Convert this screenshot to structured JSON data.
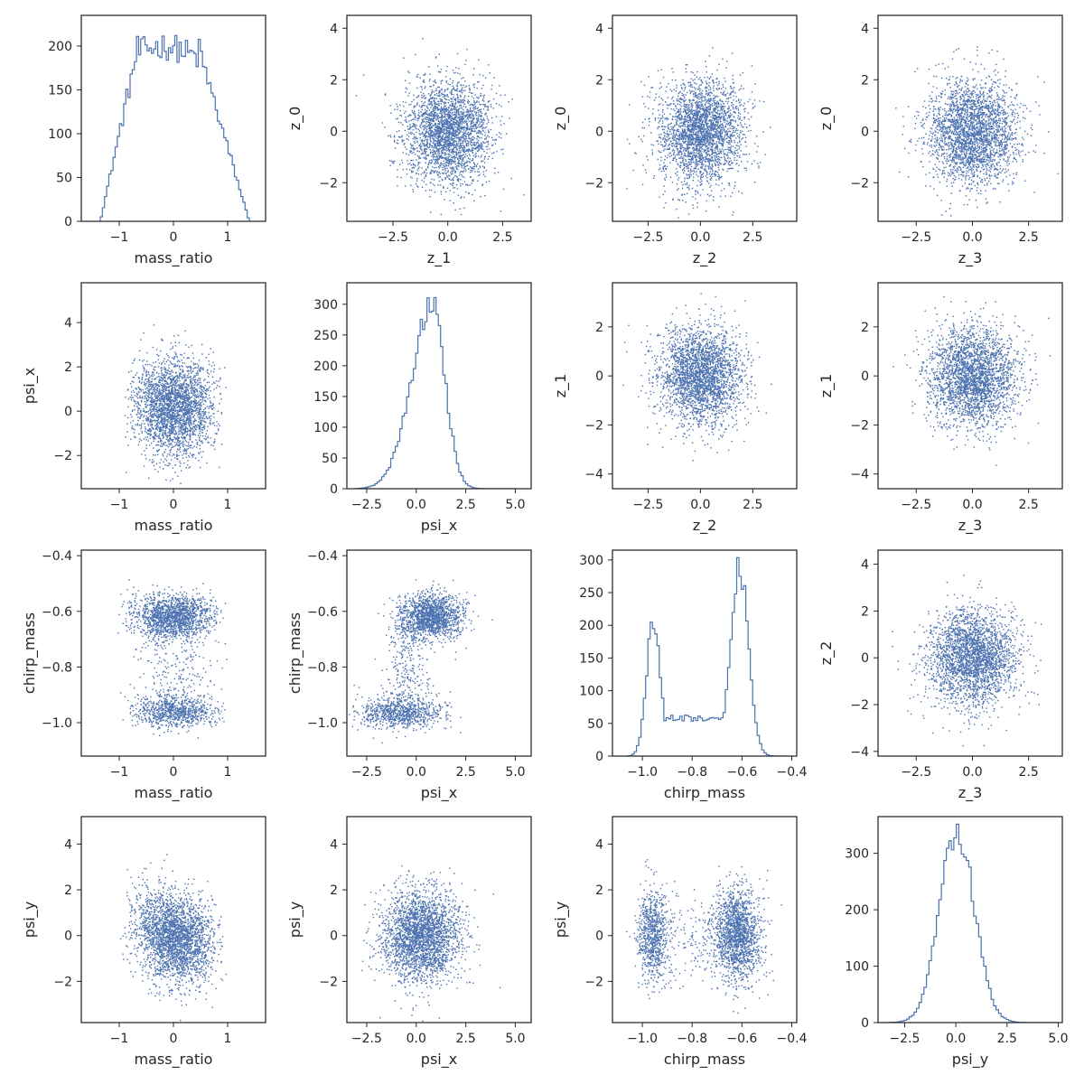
{
  "chart_data": {
    "type": "pairplot",
    "grid": false,
    "colors": {
      "marks": "#4c72b0",
      "frame": "#262626"
    },
    "variables": {
      "mass_ratio": {
        "label": "mass_ratio",
        "range": [
          -1.7,
          1.7
        ],
        "ticks": [
          -1,
          0,
          1
        ],
        "tick_labels": [
          "−1",
          "0",
          "1"
        ]
      },
      "psi_x": {
        "label": "psi_x",
        "range": [
          -3.5,
          5.8
        ],
        "ticks": [
          -2.5,
          0,
          2.5,
          5
        ],
        "tick_labels": [
          "−2.5",
          "0.0",
          "2.5",
          "5.0"
        ]
      },
      "chirp_mass": {
        "label": "chirp_mass",
        "range": [
          -1.12,
          -0.38
        ],
        "ticks": [
          -1.0,
          -0.8,
          -0.6,
          -0.4
        ],
        "tick_labels": [
          "−1.0",
          "−0.8",
          "−0.6",
          "−0.4"
        ]
      },
      "psi_y": {
        "label": "psi_y",
        "range": [
          -3.8,
          5.2
        ],
        "ticks": [
          -2.5,
          0,
          2.5,
          5
        ],
        "tick_labels": [
          "−2.5",
          "0.0",
          "2.5",
          "5.0"
        ]
      },
      "z_0": {
        "label": "z_0",
        "range": [
          -3.5,
          4.5
        ],
        "ticks": [
          -2,
          0,
          2,
          4
        ],
        "tick_labels": [
          "−2",
          "0",
          "2",
          "4"
        ]
      },
      "z_1": {
        "label": "z_1",
        "range": [
          -4.6,
          3.8
        ],
        "x_ticks": [
          -2.5,
          0,
          2.5
        ],
        "x_tick_labels": [
          "−2.5",
          "0.0",
          "2.5"
        ],
        "y_ticks": [
          -4,
          -2,
          0,
          2
        ],
        "y_tick_labels": [
          "−4",
          "−2",
          "0",
          "2"
        ]
      },
      "z_2": {
        "label": "z_2",
        "range": [
          -4.2,
          4.6
        ],
        "x_ticks": [
          -2.5,
          0,
          2.5
        ],
        "x_tick_labels": [
          "−2.5",
          "0.0",
          "2.5"
        ],
        "y_ticks": [
          -4,
          -2,
          0,
          2,
          4
        ],
        "y_tick_labels": [
          "−4",
          "−2",
          "0",
          "2",
          "4"
        ]
      },
      "z_3": {
        "label": "z_3",
        "range": [
          -4.2,
          4.0
        ],
        "ticks": [
          -2.5,
          0,
          2.5
        ],
        "tick_labels": [
          "−2.5",
          "0.0",
          "2.5"
        ]
      }
    },
    "panels": [
      {
        "id": "p00",
        "row": 0,
        "col": 0,
        "type": "histogram",
        "x": "mass_ratio",
        "xlabel": "mass_ratio",
        "ylim": [
          0,
          235
        ],
        "yticks": [
          0,
          50,
          100,
          150,
          200
        ],
        "ytick_labels": [
          "0",
          "50",
          "100",
          "150",
          "200"
        ],
        "hist": {
          "range": [
            -1.35,
            1.4
          ],
          "profile": {
            "kind": "trapezoid",
            "rise": [
              -1.35,
              -0.65
            ],
            "top": [
              -0.65,
              0.45
            ],
            "fall": [
              0.45,
              1.4
            ],
            "peak": 200
          }
        }
      },
      {
        "id": "p01",
        "row": 0,
        "col": 1,
        "type": "scatter",
        "x": "z_1",
        "y": "z_0",
        "xlabel": "z_1",
        "ylabel": "z_0",
        "cloud": {
          "kind": "gaussian",
          "mx": 0,
          "sx": 1,
          "my": 0,
          "sy": 1
        }
      },
      {
        "id": "p02",
        "row": 0,
        "col": 2,
        "type": "scatter",
        "x": "z_2",
        "y": "z_0",
        "xlabel": "z_2",
        "ylabel": "z_0",
        "cloud": {
          "kind": "gaussian",
          "mx": 0,
          "sx": 1,
          "my": 0,
          "sy": 1
        }
      },
      {
        "id": "p03",
        "row": 0,
        "col": 3,
        "type": "scatter",
        "x": "z_3",
        "y": "z_0",
        "xlabel": "z_3",
        "ylabel": "z_0",
        "cloud": {
          "kind": "gaussian",
          "mx": 0,
          "sx": 1,
          "my": 0,
          "sy": 1
        }
      },
      {
        "id": "p10",
        "row": 1,
        "col": 0,
        "type": "scatter",
        "x": "mass_ratio",
        "y": "psi_x",
        "xlabel": "mass_ratio",
        "ylabel": "psi_x",
        "yaxis": {
          "range": [
            -3.5,
            5.8
          ],
          "ticks": [
            -2,
            0,
            2,
            4
          ],
          "tick_labels": [
            "−2",
            "0",
            "2",
            "4"
          ]
        },
        "cloud": {
          "kind": "trap_x",
          "lo": -1.3,
          "hi": 1.3,
          "my": 0.2,
          "sy": 1.1
        }
      },
      {
        "id": "p11",
        "row": 1,
        "col": 1,
        "type": "histogram",
        "x": "psi_x",
        "xlabel": "psi_x",
        "ylim": [
          0,
          335
        ],
        "yticks": [
          0,
          50,
          100,
          150,
          200,
          250,
          300
        ],
        "ytick_labels": [
          "0",
          "50",
          "100",
          "150",
          "200",
          "250",
          "300"
        ],
        "hist": {
          "range": [
            -3.0,
            5.0
          ],
          "profile": {
            "kind": "skew",
            "mode": 0.8,
            "left_sd": 1.05,
            "right_sd": 0.65,
            "peak": 300
          }
        }
      },
      {
        "id": "p12",
        "row": 1,
        "col": 2,
        "type": "scatter",
        "x": "z_2",
        "y": "z_1",
        "xlabel": "z_2",
        "ylabel": "z_1",
        "cloud": {
          "kind": "gaussian",
          "mx": 0,
          "sx": 1,
          "my": 0,
          "sy": 1
        }
      },
      {
        "id": "p13",
        "row": 1,
        "col": 3,
        "type": "scatter",
        "x": "z_3",
        "y": "z_1",
        "xlabel": "z_3",
        "ylabel": "z_1",
        "cloud": {
          "kind": "gaussian",
          "mx": 0,
          "sx": 1,
          "my": 0,
          "sy": 1
        }
      },
      {
        "id": "p20",
        "row": 2,
        "col": 0,
        "type": "scatter",
        "x": "mass_ratio",
        "y": "chirp_mass",
        "xlabel": "mass_ratio",
        "ylabel": "chirp_mass",
        "cloud": {
          "kind": "bimodal",
          "xlo": -1.0,
          "xhi": 1.0,
          "mu1": -0.96,
          "s1": 0.03,
          "mu2": -0.615,
          "s2": 0.04,
          "w2": 0.62
        }
      },
      {
        "id": "p21",
        "row": 2,
        "col": 1,
        "type": "scatter",
        "x": "psi_x",
        "y": "chirp_mass",
        "xlabel": "psi_x",
        "ylabel": "chirp_mass",
        "cloud": {
          "kind": "hourglass",
          "a": {
            "mx": 0.7,
            "sx": 0.8,
            "my": -0.615,
            "sy": 0.04,
            "w": 0.58
          },
          "b": {
            "mx": -0.8,
            "sx": 1.1,
            "my": -0.96,
            "sy": 0.03,
            "w": 0.32
          },
          "bridge": {
            "x": -0.4,
            "sx": 0.5
          }
        }
      },
      {
        "id": "p22",
        "row": 2,
        "col": 2,
        "type": "histogram",
        "x": "chirp_mass",
        "xlabel": "chirp_mass",
        "ylim": [
          0,
          315
        ],
        "yticks": [
          0,
          50,
          100,
          150,
          200,
          250,
          300
        ],
        "ytick_labels": [
          "0",
          "50",
          "100",
          "150",
          "200",
          "250",
          "300"
        ],
        "hist": {
          "range": [
            -1.06,
            -0.42
          ],
          "profile": {
            "kind": "bimodal",
            "m1": -0.955,
            "s1": 0.028,
            "h1": 205,
            "m2": -0.61,
            "s2": 0.036,
            "h2": 290,
            "floor": 58,
            "floor_range": [
              -0.92,
              -0.66
            ]
          }
        }
      },
      {
        "id": "p23",
        "row": 2,
        "col": 3,
        "type": "scatter",
        "x": "z_3",
        "y": "z_2",
        "xlabel": "z_3",
        "ylabel": "z_2",
        "cloud": {
          "kind": "gaussian",
          "mx": 0,
          "sx": 1,
          "my": 0,
          "sy": 1
        }
      },
      {
        "id": "p30",
        "row": 3,
        "col": 0,
        "type": "scatter",
        "x": "mass_ratio",
        "y": "psi_y",
        "xlabel": "mass_ratio",
        "ylabel": "psi_y",
        "yaxis": {
          "range": [
            -3.8,
            5.2
          ],
          "ticks": [
            -2,
            0,
            2,
            4
          ],
          "tick_labels": [
            "−2",
            "0",
            "2",
            "4"
          ]
        },
        "cloud": {
          "kind": "trap_x_slope",
          "lo": -1.3,
          "hi": 1.3,
          "my": 0,
          "sy": 1.0,
          "slope": -0.6
        }
      },
      {
        "id": "p31",
        "row": 3,
        "col": 1,
        "type": "scatter",
        "x": "psi_x",
        "y": "psi_y",
        "xlabel": "psi_x",
        "ylabel": "psi_y",
        "yaxis": {
          "range": [
            -3.8,
            5.2
          ],
          "ticks": [
            -2,
            0,
            2,
            4
          ],
          "tick_labels": [
            "−2",
            "0",
            "2",
            "4"
          ]
        },
        "cloud": {
          "kind": "gaussian",
          "mx": 0.2,
          "sx": 1.0,
          "my": 0,
          "sy": 1.0
        }
      },
      {
        "id": "p32",
        "row": 3,
        "col": 2,
        "type": "scatter",
        "x": "chirp_mass",
        "y": "psi_y",
        "xlabel": "chirp_mass",
        "ylabel": "psi_y",
        "yaxis": {
          "range": [
            -3.8,
            5.2
          ],
          "ticks": [
            -2,
            0,
            2,
            4
          ],
          "tick_labels": [
            "−2",
            "0",
            "2",
            "4"
          ]
        },
        "cloud": {
          "kind": "bimodal_x",
          "mu1": -0.96,
          "s1": 0.03,
          "mu2": -0.62,
          "s2": 0.045,
          "w2": 0.62,
          "sy": 1.0,
          "slope2": -12
        }
      },
      {
        "id": "p33",
        "row": 3,
        "col": 3,
        "type": "histogram",
        "x": "psi_y",
        "xlabel": "psi_y",
        "ylim": [
          0,
          365
        ],
        "yticks": [
          0,
          100,
          200,
          300
        ],
        "ytick_labels": [
          "0",
          "100",
          "200",
          "300"
        ],
        "hist": {
          "range": [
            -3.5,
            5.0
          ],
          "profile": {
            "kind": "gaussian",
            "mean": 0.05,
            "sd": 0.85,
            "peak": 340
          }
        }
      }
    ]
  }
}
